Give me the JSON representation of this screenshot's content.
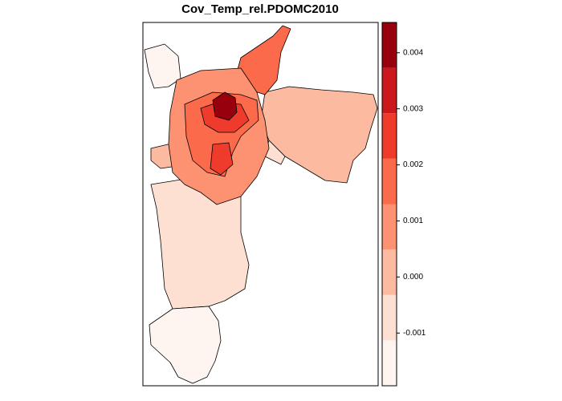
{
  "chart_data": {
    "type": "choropleth",
    "title": "Cov_Temp_rel.PDOMC2010",
    "breaks": [
      -0.00194,
      -0.00113,
      -0.00032,
      0.00049,
      0.0013,
      0.00211,
      0.00292,
      0.00373,
      0.00454
    ],
    "colors": [
      "#fff5f0",
      "#fee0d2",
      "#fcbba1",
      "#fc9272",
      "#fb6a4a",
      "#ef3b2c",
      "#cb181d",
      "#99000d"
    ],
    "yticks": [
      0.004,
      0.003,
      0.002,
      0.001,
      {
        "value": 0,
        "label": "0.000"
      },
      -0.001
    ]
  }
}
